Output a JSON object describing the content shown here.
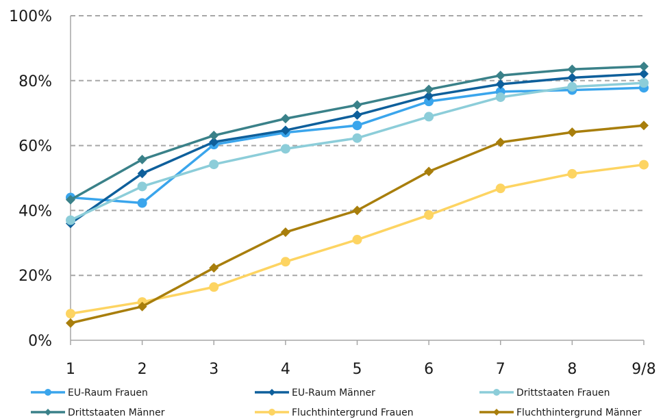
{
  "chart_data": {
    "type": "line",
    "categories": [
      "1",
      "2",
      "3",
      "4",
      "5",
      "6",
      "7",
      "8",
      "9/8"
    ],
    "ylim": [
      0,
      100
    ],
    "yticks": [
      "0%",
      "20%",
      "40%",
      "60%",
      "80%",
      "100%"
    ],
    "ytick_values": [
      0,
      20,
      40,
      60,
      80,
      100
    ],
    "grid": true,
    "legend_position": "bottom",
    "series": [
      {
        "name": "EU-Raum Frauen",
        "color": "#3aa5ec",
        "marker": "circle",
        "values": [
          44,
          42.3,
          60.3,
          64,
          66.2,
          73.6,
          76.6,
          77.1,
          77.8
        ]
      },
      {
        "name": "EU-Raum Männer",
        "color": "#0e5f9b",
        "marker": "diamond",
        "values": [
          36,
          51.4,
          61.1,
          64.7,
          69.4,
          75.3,
          78.9,
          80.9,
          82.1
        ]
      },
      {
        "name": "Drittstaaten Frauen",
        "color": "#8ccdd9",
        "marker": "circle",
        "values": [
          37,
          47.4,
          54.2,
          59,
          62.3,
          68.9,
          74.9,
          78.1,
          79.3
        ]
      },
      {
        "name": "Drittstaaten Männer",
        "color": "#3a8189",
        "marker": "diamond",
        "values": [
          43.3,
          55.7,
          63.1,
          68.3,
          72.5,
          77.3,
          81.6,
          83.5,
          84.4
        ]
      },
      {
        "name": "Fluchthintergrund Frauen",
        "color": "#fdd462",
        "marker": "circle",
        "values": [
          8.2,
          11.8,
          16.4,
          24.2,
          31,
          38.6,
          46.8,
          51.3,
          54.1
        ]
      },
      {
        "name": "Fluchthintergrund Männer",
        "color": "#a87e0c",
        "marker": "diamond",
        "values": [
          5.3,
          10.4,
          22.3,
          33.3,
          40,
          52,
          61,
          64.1,
          66.2
        ]
      }
    ]
  }
}
